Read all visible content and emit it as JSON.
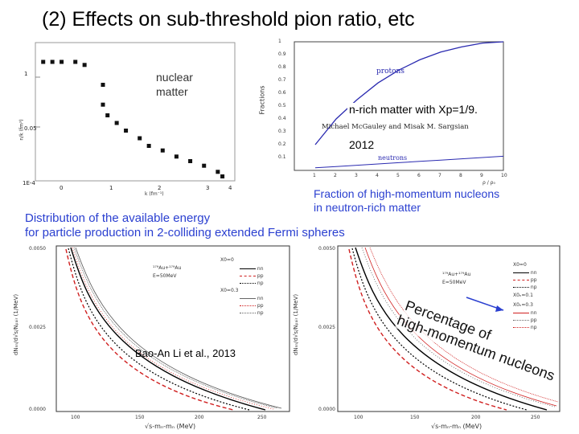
{
  "slide": {
    "title": "(2) Effects on sub-threshold pion ratio, etc"
  },
  "top_left_plot": {
    "label_line1": "nuclear",
    "label_line2": "matter",
    "y_axis_label": "n/k (fm³)",
    "x_axis_label": "k (fm⁻¹)",
    "x_ticks": [
      "0",
      "1",
      "2",
      "3",
      "4"
    ],
    "y_ticks": [
      "1",
      "0.05",
      "1E-4"
    ],
    "chart_data": {
      "type": "scatter",
      "x": [
        0.1,
        0.3,
        0.5,
        0.8,
        1.0,
        1.4,
        1.4,
        1.5,
        1.7,
        1.9,
        2.2,
        2.4,
        2.7,
        3.0,
        3.3,
        3.6,
        3.9,
        4.0
      ],
      "y": [
        0.9,
        0.9,
        0.9,
        0.9,
        0.88,
        0.75,
        0.62,
        0.55,
        0.5,
        0.45,
        0.4,
        0.35,
        0.32,
        0.28,
        0.25,
        0.22,
        0.18,
        0.15
      ]
    }
  },
  "top_right_plot": {
    "y_axis_label": "Fractions",
    "x_axis_label": "ρ / ρ₀",
    "y_ticks": [
      "1",
      "0.9",
      "0.8",
      "0.7",
      "0.6",
      "0.5",
      "0.4",
      "0.3",
      "0.2",
      "0.1"
    ],
    "x_ticks": [
      "1",
      "2",
      "3",
      "4",
      "5",
      "6",
      "7",
      "8",
      "9",
      "10"
    ],
    "protons_label": "protons",
    "neutrons_label": "neutrons",
    "n_rich_text": "n-rich matter with Xp=1/9.",
    "authors": "Michael McGauley and Misak M. Sargsian",
    "year_text": "2012",
    "caption_line1": "Fraction of high-momentum nucleons",
    "caption_line2": "in neutron-rich matter",
    "chart_data": {
      "type": "line",
      "x": [
        1,
        2,
        3,
        4,
        5,
        6,
        7,
        8,
        9,
        10
      ],
      "series": [
        {
          "name": "protons",
          "values": [
            0.2,
            0.4,
            0.55,
            0.68,
            0.78,
            0.86,
            0.92,
            0.96,
            0.99,
            1.0
          ]
        },
        {
          "name": "neutrons",
          "values": [
            0.02,
            0.03,
            0.04,
            0.05,
            0.06,
            0.07,
            0.08,
            0.09,
            0.1,
            0.11
          ]
        }
      ],
      "xlim": [
        0,
        10
      ],
      "ylim": [
        0,
        1
      ]
    }
  },
  "bottom_caption": {
    "line1": "Distribution of the available energy",
    "line2": "for particle production in 2-colliding extended Fermi spheres"
  },
  "bottom_left_plot": {
    "y_axis_label": "dNₙₙ/d√s/Nₚₐᵢᵣ (1/MeV)",
    "x_axis_label": "√s-mₙ-mₙ (MeV)",
    "y_ticks": [
      "0.0050",
      "0.0025",
      "0.0000"
    ],
    "x_ticks": [
      "100",
      "150",
      "200",
      "250"
    ],
    "reaction": "¹⁷⁹Au+¹⁷⁹Au",
    "energy": "E=50MeV",
    "legend_x0": "X0=0",
    "legend_x03": "X0=0.3",
    "legend": [
      "nn",
      "pp",
      "np",
      "nn",
      "pp",
      "np"
    ],
    "credit": "Bao-An Li et al., 2013"
  },
  "bottom_right_plot": {
    "y_axis_label": "dNₙₙ/d√s/Nₚₐᵢᵣ (1/MeV)",
    "x_axis_label": "√s-mₙ-mₙ (MeV)",
    "y_ticks": [
      "0.0050",
      "0.0025",
      "0.0000"
    ],
    "x_ticks": [
      "100",
      "150",
      "200",
      "250"
    ],
    "reaction": "¹⁷⁹Au+¹⁷⁹Au",
    "energy": "E=50MeV",
    "legend_x0": "X0=0",
    "legend_x01": "X0ₙ=0.1",
    "legend_x03": "X0ₙ=0.3",
    "legend": [
      "nn",
      "pp",
      "np",
      "nn",
      "pp",
      "np"
    ],
    "annotation_line1": "Percentage of",
    "annotation_line2": "high-momentum nucleons"
  },
  "colors": {
    "proton_curve": "#2a2ab0",
    "arrow": "#2a3fd0",
    "red_dash": "#d02020"
  }
}
